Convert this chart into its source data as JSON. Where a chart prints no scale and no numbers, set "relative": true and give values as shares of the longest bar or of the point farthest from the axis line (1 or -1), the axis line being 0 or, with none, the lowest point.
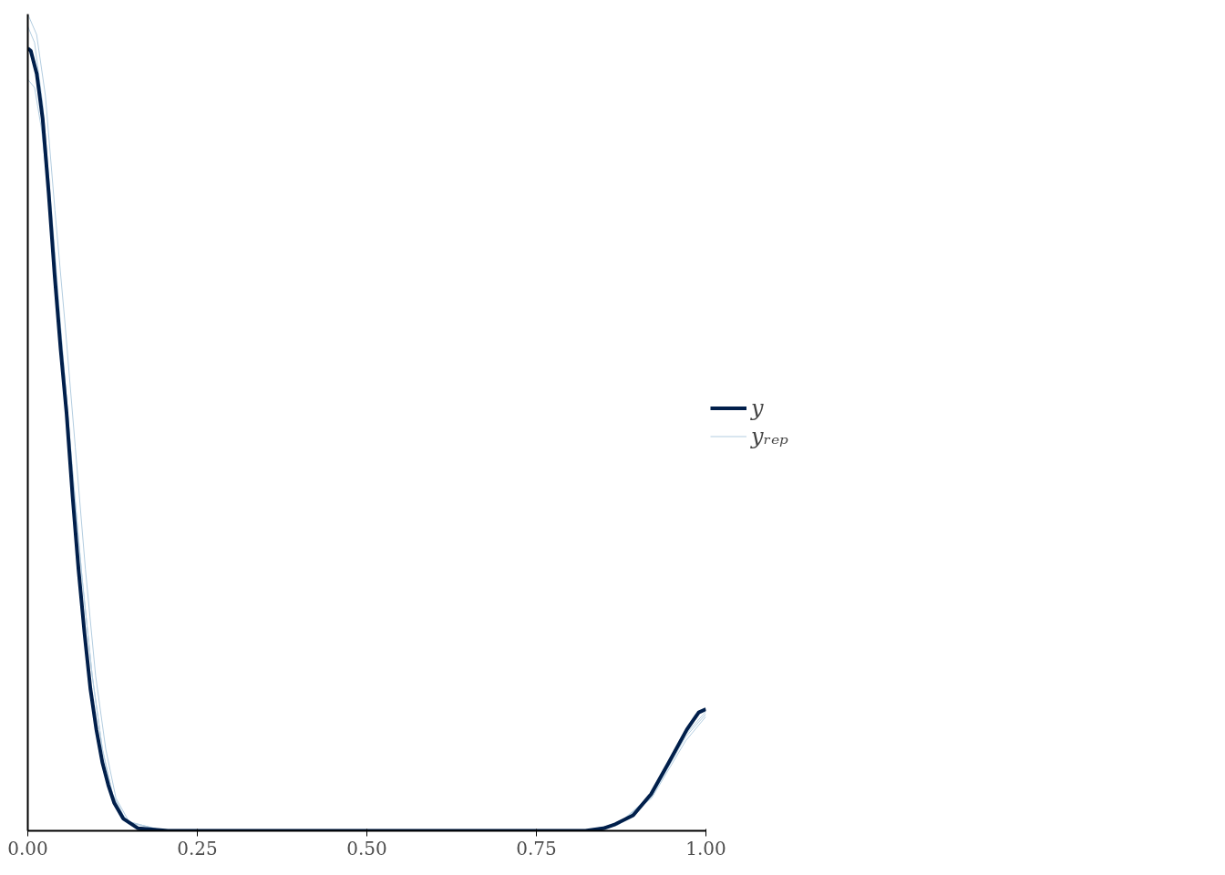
{
  "chart_data": {
    "type": "line",
    "relative": true,
    "legend": "right",
    "grid": false,
    "xlim": [
      0,
      1
    ],
    "xticks": [
      {
        "value": 0,
        "label": "0.00"
      },
      {
        "value": 0.25,
        "label": "0.25"
      },
      {
        "value": 0.5,
        "label": "0.50"
      },
      {
        "value": 0.75,
        "label": "0.75"
      },
      {
        "value": 1,
        "label": "1.00"
      }
    ],
    "series": [
      {
        "name": "y",
        "color": "#011f4b",
        "x": [
          0,
          0.0044,
          0.0132,
          0.022,
          0.0308,
          0.0396,
          0.0484,
          0.0572,
          0.066,
          0.0748,
          0.0836,
          0.0923,
          0.1011,
          0.1099,
          0.1187,
          0.1275,
          0.1407,
          0.1627,
          0.2067,
          0.8223,
          0.8487,
          0.8663,
          0.8927,
          0.9191,
          0.9455,
          0.9719,
          0.9894,
          1.0
        ],
        "values": [
          0.958,
          0.955,
          0.927,
          0.871,
          0.781,
          0.68,
          0.59,
          0.511,
          0.41,
          0.32,
          0.242,
          0.174,
          0.124,
          0.084,
          0.056,
          0.034,
          0.015,
          0.003,
          0,
          0,
          0.003,
          0.008,
          0.019,
          0.045,
          0.084,
          0.124,
          0.145,
          0.149
        ]
      },
      {
        "name": "yᵣₑₚ",
        "color": "#b3cde0",
        "x": [
          0,
          0.013,
          0.026,
          0.04,
          0.055,
          0.07,
          0.085,
          0.1,
          0.115,
          0.13,
          0.15,
          0.2,
          0.82,
          0.87,
          0.92,
          0.97,
          1.0
        ],
        "values": [
          1.0,
          0.975,
          0.9,
          0.76,
          0.62,
          0.47,
          0.32,
          0.19,
          0.1,
          0.04,
          0.01,
          0,
          0,
          0.008,
          0.042,
          0.115,
          0.143
        ]
      },
      {
        "color": "#b3cde0",
        "x": [
          0,
          0.01,
          0.022,
          0.035,
          0.05,
          0.065,
          0.08,
          0.095,
          0.11,
          0.125,
          0.145,
          0.2,
          0.82,
          0.87,
          0.92,
          0.97,
          1.0
        ],
        "values": [
          0.985,
          0.965,
          0.89,
          0.76,
          0.6,
          0.45,
          0.31,
          0.19,
          0.1,
          0.045,
          0.012,
          0,
          0,
          0.008,
          0.044,
          0.118,
          0.146
        ]
      },
      {
        "color": "#b3cde0",
        "x": [
          0,
          0.01,
          0.02,
          0.035,
          0.05,
          0.065,
          0.08,
          0.095,
          0.11,
          0.125,
          0.145,
          0.2,
          0.82,
          0.87,
          0.92,
          0.97,
          1.0
        ],
        "values": [
          0.92,
          0.91,
          0.86,
          0.75,
          0.6,
          0.45,
          0.31,
          0.19,
          0.1,
          0.045,
          0.012,
          0,
          0,
          0.007,
          0.04,
          0.11,
          0.14
        ]
      }
    ]
  }
}
